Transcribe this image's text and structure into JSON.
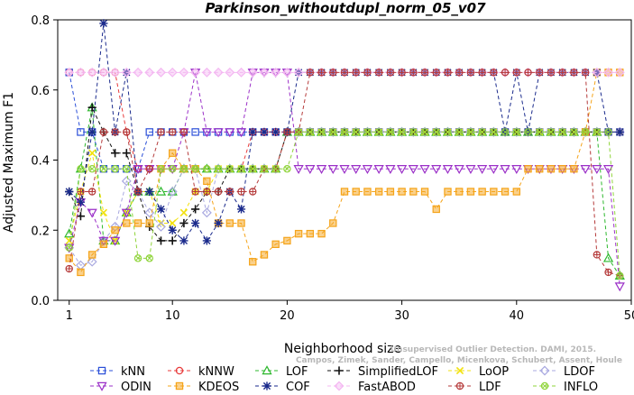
{
  "chart_data": {
    "type": "line",
    "title": "Parkinson_withoutdupl_norm_05_v07",
    "xlabel": "Neighborhood size",
    "ylabel": "Adjusted Maximum F1",
    "xlim": [
      0,
      50
    ],
    "ylim": [
      0,
      0.8
    ],
    "xticks": [
      "1",
      "10",
      "20",
      "30",
      "40",
      "50"
    ],
    "yticks": [
      "0.0",
      "0.2",
      "0.4",
      "0.6",
      "0.8"
    ],
    "grid": false,
    "legend_position": "bottom",
    "watermark": "Campos, Zimek, Sander, Campello, Micenkova, Schubert, Assent, Houle",
    "watermark_line1": "Unsupervised Outlier Detection. DAMI, 2015.",
    "x": [
      1,
      2,
      3,
      4,
      5,
      6,
      7,
      8,
      9,
      10,
      11,
      12,
      13,
      14,
      15,
      16,
      17,
      18,
      19,
      20,
      21,
      22,
      23,
      24,
      25,
      26,
      27,
      28,
      29,
      30,
      31,
      32,
      33,
      34,
      35,
      36,
      37,
      38,
      39,
      40,
      41,
      42,
      43,
      44,
      45,
      46,
      47,
      48,
      49
    ],
    "series": [
      {
        "name": "kNN",
        "color": "#2b4fd8",
        "marker": "square",
        "values": [
          0.65,
          0.48,
          0.48,
          0.375,
          0.375,
          0.375,
          0.375,
          0.48,
          0.48,
          0.48,
          0.48,
          0.48,
          0.48,
          0.48,
          0.48,
          0.48,
          0.48,
          0.48,
          0.48,
          0.48,
          0.48,
          0.48,
          0.48,
          0.48,
          0.48,
          0.48,
          0.48,
          0.48,
          0.48,
          0.48,
          0.48,
          0.48,
          0.48,
          0.48,
          0.48,
          0.48,
          0.48,
          0.48,
          0.48,
          0.48,
          0.48,
          0.48,
          0.48,
          0.48,
          0.48,
          0.48,
          0.48,
          0.48,
          0.48
        ]
      },
      {
        "name": "kNNW",
        "color": "#e83a3a",
        "marker": "circle",
        "values": [
          0.65,
          0.65,
          0.65,
          0.65,
          0.65,
          0.48,
          0.375,
          0.375,
          0.375,
          0.375,
          0.375,
          0.375,
          0.375,
          0.375,
          0.375,
          0.375,
          0.48,
          0.48,
          0.48,
          0.48,
          0.48,
          0.48,
          0.48,
          0.48,
          0.48,
          0.48,
          0.48,
          0.48,
          0.48,
          0.48,
          0.48,
          0.48,
          0.48,
          0.48,
          0.48,
          0.48,
          0.48,
          0.48,
          0.48,
          0.48,
          0.48,
          0.48,
          0.48,
          0.48,
          0.48,
          0.48,
          0.48,
          0.48,
          0.48
        ]
      },
      {
        "name": "LOF",
        "color": "#2db82d",
        "marker": "triangle-up",
        "values": [
          0.19,
          0.375,
          0.55,
          0.17,
          0.17,
          0.25,
          0.31,
          0.31,
          0.31,
          0.31,
          0.375,
          0.375,
          0.375,
          0.375,
          0.375,
          0.375,
          0.375,
          0.375,
          0.375,
          0.48,
          0.48,
          0.48,
          0.48,
          0.48,
          0.48,
          0.48,
          0.48,
          0.48,
          0.48,
          0.48,
          0.48,
          0.48,
          0.48,
          0.48,
          0.48,
          0.48,
          0.48,
          0.48,
          0.48,
          0.48,
          0.48,
          0.48,
          0.48,
          0.48,
          0.48,
          0.48,
          0.48,
          0.12,
          0.07
        ]
      },
      {
        "name": "SimplifiedLOF",
        "color": "#111111",
        "marker": "plus",
        "values": [
          0.31,
          0.24,
          0.55,
          0.48,
          0.42,
          0.42,
          0.31,
          0.21,
          0.17,
          0.17,
          0.22,
          0.26,
          0.31,
          0.31,
          0.375,
          0.375,
          0.375,
          0.375,
          0.375,
          0.48,
          0.48,
          0.48,
          0.48,
          0.48,
          0.48,
          0.48,
          0.48,
          0.48,
          0.48,
          0.48,
          0.48,
          0.48,
          0.48,
          0.48,
          0.48,
          0.48,
          0.48,
          0.48,
          0.48,
          0.48,
          0.48,
          0.48,
          0.48,
          0.48,
          0.48,
          0.48,
          0.48,
          0.48,
          0.48
        ]
      },
      {
        "name": "LoOP",
        "color": "#f2e20f",
        "marker": "x",
        "values": [
          0.17,
          0.31,
          0.42,
          0.25,
          0.17,
          0.25,
          0.31,
          0.31,
          0.22,
          0.22,
          0.25,
          0.31,
          0.31,
          0.375,
          0.375,
          0.375,
          0.375,
          0.375,
          0.375,
          0.48,
          0.48,
          0.48,
          0.48,
          0.48,
          0.48,
          0.48,
          0.48,
          0.48,
          0.48,
          0.48,
          0.48,
          0.48,
          0.48,
          0.48,
          0.48,
          0.48,
          0.48,
          0.48,
          0.48,
          0.48,
          0.48,
          0.48,
          0.48,
          0.48,
          0.48,
          0.48,
          0.48,
          0.48,
          0.48
        ]
      },
      {
        "name": "LDOF",
        "color": "#a8a8e0",
        "marker": "diamond",
        "values": [
          0.15,
          0.1,
          0.11,
          0.17,
          0.21,
          0.34,
          0.31,
          0.25,
          0.21,
          0.31,
          0.375,
          0.375,
          0.25,
          0.375,
          0.375,
          0.375,
          0.375,
          0.375,
          0.375,
          0.48,
          0.48,
          0.48,
          0.48,
          0.48,
          0.48,
          0.48,
          0.48,
          0.48,
          0.48,
          0.48,
          0.48,
          0.48,
          0.48,
          0.48,
          0.48,
          0.48,
          0.48,
          0.48,
          0.48,
          0.48,
          0.48,
          0.48,
          0.48,
          0.48,
          0.48,
          0.48,
          0.48,
          0.48,
          0.48
        ]
      },
      {
        "name": "ODIN",
        "color": "#9b30c8",
        "marker": "triangle-down",
        "values": [
          0.15,
          0.28,
          0.25,
          0.17,
          0.17,
          0.25,
          0.375,
          0.375,
          0.375,
          0.375,
          0.48,
          0.65,
          0.48,
          0.48,
          0.48,
          0.48,
          0.65,
          0.65,
          0.65,
          0.65,
          0.375,
          0.375,
          0.375,
          0.375,
          0.375,
          0.375,
          0.375,
          0.375,
          0.375,
          0.375,
          0.375,
          0.375,
          0.375,
          0.375,
          0.375,
          0.375,
          0.375,
          0.375,
          0.375,
          0.375,
          0.375,
          0.375,
          0.375,
          0.375,
          0.375,
          0.375,
          0.375,
          0.375,
          0.04
        ]
      },
      {
        "name": "KDEOS",
        "color": "#f5a41a",
        "marker": "square-filled",
        "values": [
          0.12,
          0.08,
          0.13,
          0.16,
          0.2,
          0.22,
          0.22,
          0.22,
          0.375,
          0.42,
          0.375,
          0.375,
          0.34,
          0.22,
          0.22,
          0.22,
          0.11,
          0.13,
          0.16,
          0.17,
          0.19,
          0.19,
          0.19,
          0.22,
          0.31,
          0.31,
          0.31,
          0.31,
          0.31,
          0.31,
          0.31,
          0.31,
          0.26,
          0.31,
          0.31,
          0.31,
          0.31,
          0.31,
          0.31,
          0.31,
          0.375,
          0.375,
          0.375,
          0.375,
          0.375,
          0.48,
          0.65,
          0.65,
          0.65
        ]
      },
      {
        "name": "COF",
        "color": "#1a2a8c",
        "marker": "asterisk",
        "values": [
          0.31,
          0.28,
          0.48,
          0.79,
          0.48,
          0.65,
          0.31,
          0.31,
          0.26,
          0.2,
          0.17,
          0.22,
          0.17,
          0.22,
          0.31,
          0.26,
          0.48,
          0.48,
          0.48,
          0.48,
          0.65,
          0.65,
          0.65,
          0.65,
          0.65,
          0.65,
          0.65,
          0.65,
          0.65,
          0.65,
          0.65,
          0.65,
          0.65,
          0.65,
          0.65,
          0.65,
          0.65,
          0.65,
          0.48,
          0.65,
          0.48,
          0.65,
          0.65,
          0.65,
          0.65,
          0.65,
          0.65,
          0.48,
          0.48
        ]
      },
      {
        "name": "FastABOD",
        "color": "#f4b8f2",
        "marker": "diamond-filled",
        "values": [
          0.65,
          0.65,
          0.65,
          0.65,
          0.65,
          0.65,
          0.65,
          0.65,
          0.65,
          0.65,
          0.65,
          0.65,
          0.65,
          0.65,
          0.65,
          0.65,
          0.65,
          0.65,
          0.65,
          0.65,
          0.65,
          0.65,
          0.65,
          0.65,
          0.65,
          0.65,
          0.65,
          0.65,
          0.65,
          0.65,
          0.65,
          0.65,
          0.65,
          0.65,
          0.65,
          0.65,
          0.65,
          0.65,
          0.65,
          0.65,
          0.65,
          0.65,
          0.65,
          0.65,
          0.65,
          0.65,
          0.65,
          0.65,
          0.65
        ]
      },
      {
        "name": "LDF",
        "color": "#b53a3a",
        "marker": "circle-plus",
        "values": [
          0.09,
          0.31,
          0.31,
          0.48,
          0.48,
          0.48,
          0.31,
          0.375,
          0.48,
          0.48,
          0.48,
          0.31,
          0.31,
          0.31,
          0.31,
          0.31,
          0.31,
          0.375,
          0.375,
          0.48,
          0.48,
          0.65,
          0.65,
          0.65,
          0.65,
          0.65,
          0.65,
          0.65,
          0.65,
          0.65,
          0.65,
          0.65,
          0.65,
          0.65,
          0.65,
          0.65,
          0.65,
          0.65,
          0.65,
          0.65,
          0.65,
          0.65,
          0.65,
          0.65,
          0.65,
          0.65,
          0.13,
          0.08,
          0.07
        ]
      },
      {
        "name": "INFLO",
        "color": "#8fd43a",
        "marker": "circle-x",
        "values": [
          0.15,
          0.375,
          0.375,
          0.375,
          0.375,
          0.375,
          0.12,
          0.12,
          0.375,
          0.375,
          0.375,
          0.375,
          0.375,
          0.375,
          0.375,
          0.375,
          0.375,
          0.375,
          0.375,
          0.375,
          0.48,
          0.48,
          0.48,
          0.48,
          0.48,
          0.48,
          0.48,
          0.48,
          0.48,
          0.48,
          0.48,
          0.48,
          0.48,
          0.48,
          0.48,
          0.48,
          0.48,
          0.48,
          0.48,
          0.48,
          0.48,
          0.48,
          0.48,
          0.48,
          0.48,
          0.48,
          0.48,
          0.48,
          0.07
        ]
      }
    ]
  }
}
